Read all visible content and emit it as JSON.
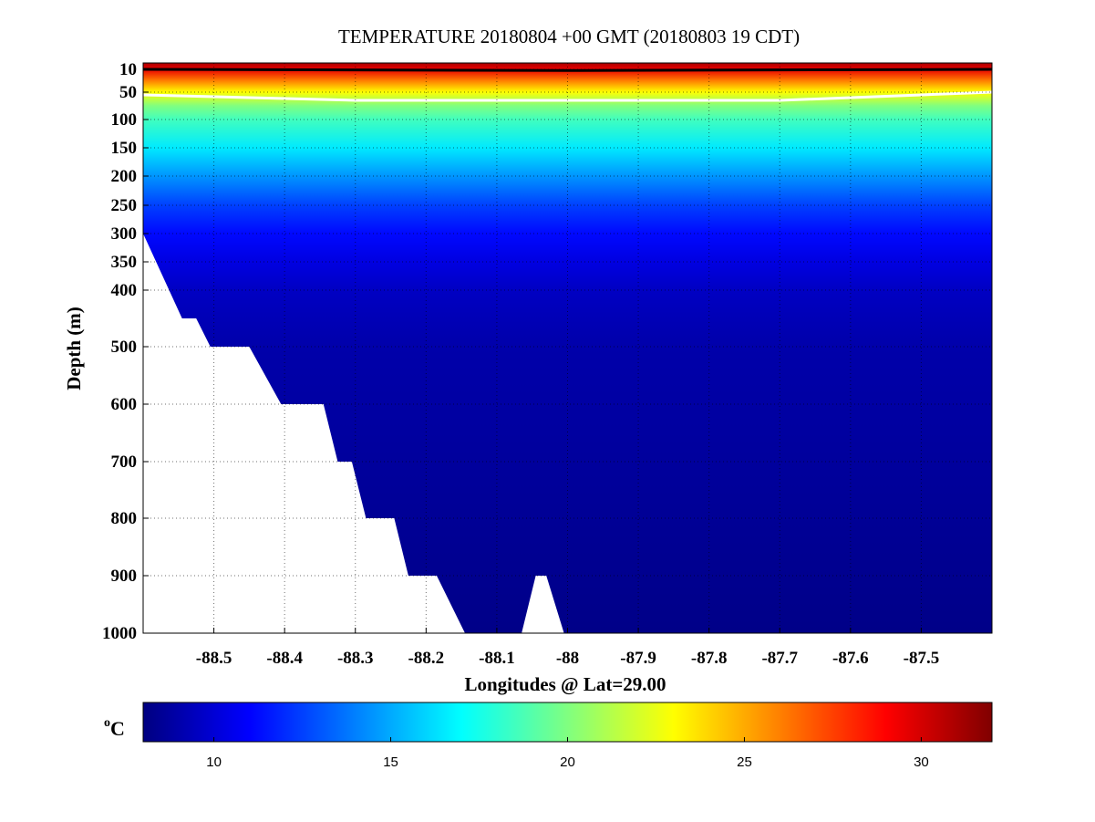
{
  "chart_data": {
    "type": "heatmap",
    "title": "TEMPERATURE 20180804 +00 GMT (20180803 19 CDT)",
    "xlabel": "Longitudes @ Lat=29.00",
    "ylabel": "Depth (m)",
    "xlim": [
      -88.6,
      -87.4
    ],
    "x_ticks": [
      -88.5,
      -88.4,
      -88.3,
      -88.2,
      -88.1,
      -88,
      -87.9,
      -87.8,
      -87.7,
      -87.6,
      -87.5
    ],
    "x_tick_labels": [
      "-88.5",
      "-88.4",
      "-88.3",
      "-88.2",
      "-88.1",
      "-88",
      "-87.9",
      "-87.8",
      "-87.7",
      "-87.6",
      "-87.5"
    ],
    "y_ticks": [
      10,
      50,
      100,
      150,
      200,
      250,
      300,
      350,
      400,
      500,
      600,
      700,
      800,
      900,
      1000
    ],
    "y_tick_labels": [
      "10",
      "50",
      "100",
      "150",
      "200",
      "250",
      "300",
      "350",
      "400",
      "500",
      "600",
      "700",
      "800",
      "900",
      "1000"
    ],
    "y_axis_note": "nonlinear, stretched above 400 m",
    "ylim": [
      0,
      1000
    ],
    "grid": true,
    "colorbar": {
      "unit_base": "C",
      "unit_sup": "o",
      "range": [
        8,
        32
      ],
      "ticks": [
        10,
        15,
        20,
        25,
        30
      ],
      "tick_labels": [
        "10",
        "15",
        "20",
        "25",
        "30"
      ],
      "colormap": "jet"
    },
    "temperature_profile": [
      {
        "depth": 0,
        "temp": 31
      },
      {
        "depth": 10,
        "temp": 29.5
      },
      {
        "depth": 30,
        "temp": 26
      },
      {
        "depth": 50,
        "temp": 23
      },
      {
        "depth": 75,
        "temp": 20
      },
      {
        "depth": 100,
        "temp": 18.5
      },
      {
        "depth": 150,
        "temp": 16.5
      },
      {
        "depth": 200,
        "temp": 14.5
      },
      {
        "depth": 250,
        "temp": 12.5
      },
      {
        "depth": 300,
        "temp": 11.2
      },
      {
        "depth": 350,
        "temp": 10.3
      },
      {
        "depth": 400,
        "temp": 9.6
      },
      {
        "depth": 500,
        "temp": 9
      },
      {
        "depth": 1000,
        "temp": 8.2
      }
    ],
    "contours": [
      {
        "temp": 30,
        "color": "#000000",
        "depths": [
          {
            "lon": -88.6,
            "depth": 10
          },
          {
            "lon": -88.0,
            "depth": 12
          },
          {
            "lon": -87.4,
            "depth": 10
          }
        ]
      },
      {
        "temp": 23,
        "color": "#ffffff",
        "depths": [
          {
            "lon": -88.6,
            "depth": 55
          },
          {
            "lon": -88.3,
            "depth": 65
          },
          {
            "lon": -88.0,
            "depth": 65
          },
          {
            "lon": -87.7,
            "depth": 65
          },
          {
            "lon": -87.4,
            "depth": 50
          }
        ]
      }
    ],
    "bathymetry_mask": [
      {
        "lon": -88.6,
        "depth": 300
      },
      {
        "lon": -88.545,
        "depth": 450
      },
      {
        "lon": -88.525,
        "depth": 450
      },
      {
        "lon": -88.505,
        "depth": 500
      },
      {
        "lon": -88.45,
        "depth": 500
      },
      {
        "lon": -88.405,
        "depth": 600
      },
      {
        "lon": -88.345,
        "depth": 600
      },
      {
        "lon": -88.325,
        "depth": 700
      },
      {
        "lon": -88.305,
        "depth": 700
      },
      {
        "lon": -88.285,
        "depth": 800
      },
      {
        "lon": -88.245,
        "depth": 800
      },
      {
        "lon": -88.225,
        "depth": 900
      },
      {
        "lon": -88.185,
        "depth": 900
      },
      {
        "lon": -88.145,
        "depth": 1000
      },
      {
        "lon": -88.065,
        "depth": 1000
      },
      {
        "lon": -88.045,
        "depth": 900
      },
      {
        "lon": -88.03,
        "depth": 900
      },
      {
        "lon": -88.005,
        "depth": 1000
      }
    ]
  }
}
